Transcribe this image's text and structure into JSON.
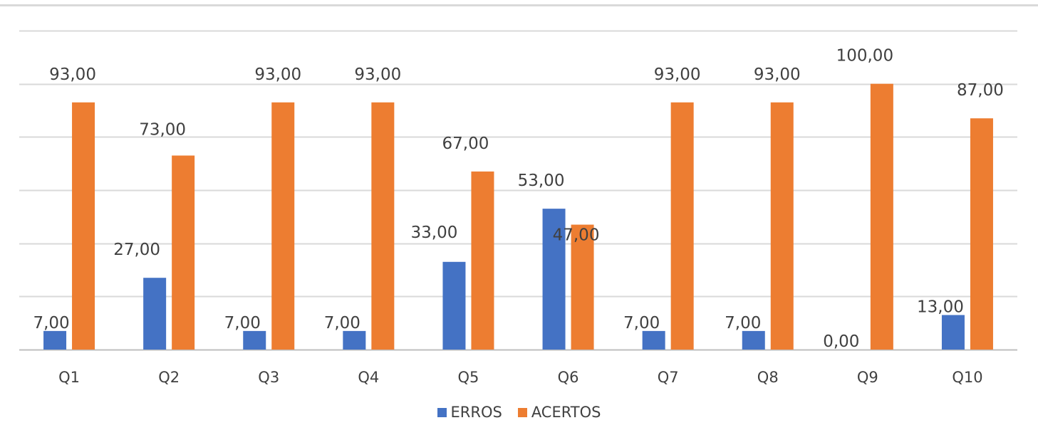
{
  "chart_data": {
    "type": "bar",
    "title": "",
    "xlabel": "",
    "ylabel": "",
    "categories": [
      "Q1",
      "Q2",
      "Q3",
      "Q4",
      "Q5",
      "Q6",
      "Q7",
      "Q8",
      "Q9",
      "Q10"
    ],
    "series": [
      {
        "name": "ERROS",
        "color": "#4472C4",
        "values": [
          7,
          27,
          7,
          7,
          33,
          53,
          7,
          7,
          0,
          13
        ],
        "labels": [
          "7,00",
          "27,00",
          "7,00",
          "7,00",
          "33,00",
          "53,00",
          "7,00",
          "7,00",
          "0,00",
          "13,00"
        ]
      },
      {
        "name": "ACERTOS",
        "color": "#ED7D31",
        "values": [
          93,
          73,
          93,
          93,
          67,
          47,
          93,
          93,
          100,
          87
        ],
        "labels": [
          "93,00",
          "73,00",
          "93,00",
          "93,00",
          "67,00",
          "47,00",
          "93,00",
          "93,00",
          "100,00",
          "87,00"
        ]
      }
    ],
    "ylim": [
      0,
      120
    ],
    "y_tick_labels_shown": false,
    "grid": true,
    "gridline_step": 20,
    "legend": "bottom",
    "data_labels": true
  }
}
